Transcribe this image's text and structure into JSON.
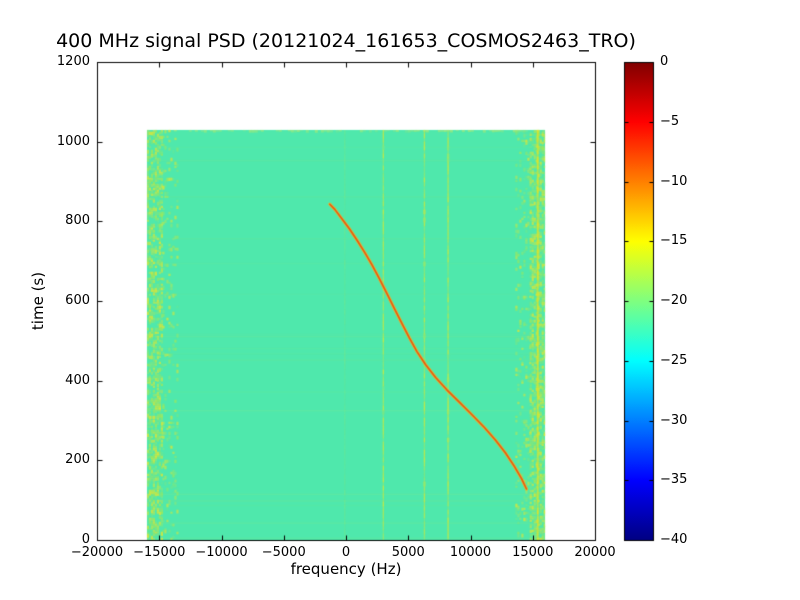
{
  "chart_data": {
    "type": "heatmap",
    "title": "400 MHz signal PSD (20121024_161653_COSMOS2463_TRO)",
    "xlabel": "frequency (Hz)",
    "ylabel": "time (s)",
    "xlim": [
      -20000,
      20000
    ],
    "ylim": [
      0,
      1200
    ],
    "grid": false,
    "x_ticks": [
      {
        "v": -20000,
        "label": "−20000"
      },
      {
        "v": -15000,
        "label": "−15000"
      },
      {
        "v": -10000,
        "label": "−10000"
      },
      {
        "v": -5000,
        "label": "−5000"
      },
      {
        "v": 0,
        "label": "0"
      },
      {
        "v": 5000,
        "label": "5000"
      },
      {
        "v": 10000,
        "label": "10000"
      },
      {
        "v": 15000,
        "label": "15000"
      },
      {
        "v": 20000,
        "label": "20000"
      }
    ],
    "y_ticks": [
      {
        "v": 0,
        "label": "0"
      },
      {
        "v": 200,
        "label": "200"
      },
      {
        "v": 400,
        "label": "400"
      },
      {
        "v": 600,
        "label": "600"
      },
      {
        "v": 800,
        "label": "800"
      },
      {
        "v": 1000,
        "label": "1000"
      },
      {
        "v": 1200,
        "label": "1200"
      }
    ],
    "colorbar": {
      "cmap": "jet",
      "vmin": -40,
      "vmax": 0,
      "ticks": [
        {
          "v": 0,
          "label": "0"
        },
        {
          "v": -5,
          "label": "−5"
        },
        {
          "v": -10,
          "label": "−10"
        },
        {
          "v": -15,
          "label": "−15"
        },
        {
          "v": -20,
          "label": "−20"
        },
        {
          "v": -25,
          "label": "−25"
        },
        {
          "v": -30,
          "label": "−30"
        },
        {
          "v": -35,
          "label": "−35"
        },
        {
          "v": -40,
          "label": "−40"
        }
      ],
      "gradient_stops": [
        [
          0.0,
          "#000083"
        ],
        [
          0.125,
          "#0000ff"
        ],
        [
          0.375,
          "#00ffff"
        ],
        [
          0.625,
          "#ffff00"
        ],
        [
          0.875,
          "#ff0000"
        ],
        [
          1.0,
          "#800000"
        ]
      ]
    },
    "heatmap": {
      "freq_extent": [
        -16000,
        16000
      ],
      "time_extent": [
        0,
        1030
      ],
      "background_db": -24,
      "background_color": "#4fe8ac",
      "noise_colors": [
        "#9FE85A",
        "#C8E845",
        "#E2E532",
        "#7FE87F"
      ],
      "edge_noise_bands": [
        {
          "freq": [
            -16000,
            -14750
          ],
          "density": 0.5
        },
        {
          "freq": [
            -14750,
            -13600
          ],
          "density": 0.1
        },
        {
          "freq": [
            13600,
            14750
          ],
          "density": 0.1
        },
        {
          "freq": [
            14750,
            16000
          ],
          "density": 0.5
        }
      ],
      "bright_edge_line_hz": 15400,
      "bright_edge_color": "#DCE428",
      "rfi_lines_hz": [
        3000,
        6300,
        8200
      ],
      "faint_lines_hz": [
        -100
      ],
      "rfi_color": "#C9E83E",
      "doppler_track": {
        "halo_color": "#F0B428",
        "core_color": "#E85A10",
        "points": [
          [
            -1300,
            843
          ],
          [
            -900,
            830
          ],
          [
            -300,
            805
          ],
          [
            300,
            780
          ],
          [
            900,
            752
          ],
          [
            1500,
            722
          ],
          [
            2100,
            690
          ],
          [
            2700,
            655
          ],
          [
            3300,
            618
          ],
          [
            3900,
            580
          ],
          [
            4500,
            543
          ],
          [
            5100,
            507
          ],
          [
            5700,
            473
          ],
          [
            6400,
            440
          ],
          [
            7200,
            408
          ],
          [
            8100,
            377
          ],
          [
            9100,
            346
          ],
          [
            10100,
            315
          ],
          [
            11100,
            283
          ],
          [
            12000,
            251
          ],
          [
            12800,
            219
          ],
          [
            13500,
            186
          ],
          [
            14100,
            154
          ],
          [
            14500,
            128
          ]
        ]
      }
    }
  }
}
